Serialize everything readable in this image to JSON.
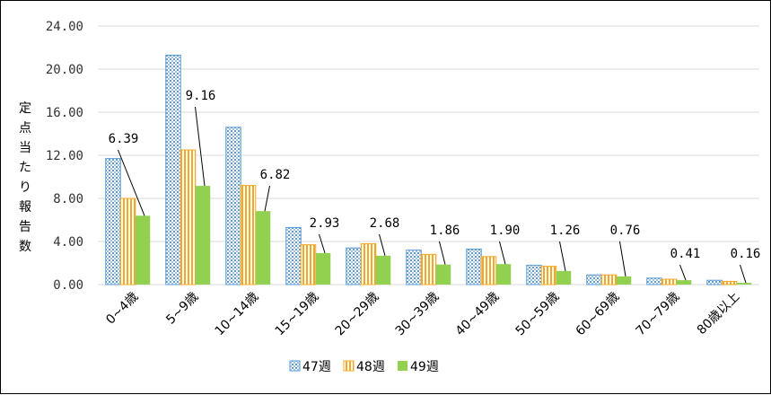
{
  "chart_data": {
    "type": "bar",
    "title": "",
    "xlabel": "",
    "ylabel": "定点当たり報告数",
    "ylim": [
      0,
      24
    ],
    "yticks": [
      "0.00",
      "4.00",
      "8.00",
      "12.00",
      "16.00",
      "20.00",
      "24.00"
    ],
    "categories": [
      "0~4歳",
      "5~9歳",
      "10~14歳",
      "15~19歳",
      "20~29歳",
      "30~39歳",
      "40~49歳",
      "50~59歳",
      "60~69歳",
      "70~79歳",
      "80歳以上"
    ],
    "series": [
      {
        "name": "47週",
        "color": "#5b9bd5",
        "pattern": "dots",
        "values": [
          11.7,
          21.3,
          14.6,
          5.3,
          3.4,
          3.2,
          3.3,
          1.8,
          0.9,
          0.6,
          0.4
        ]
      },
      {
        "name": "48週",
        "color": "#f5a623",
        "pattern": "vertical-stripes",
        "values": [
          8.0,
          12.5,
          9.2,
          3.7,
          3.8,
          2.8,
          2.6,
          1.7,
          0.9,
          0.5,
          0.3
        ]
      },
      {
        "name": "49週",
        "color": "#92d050",
        "pattern": "solid",
        "values": [
          6.39,
          9.16,
          6.82,
          2.93,
          2.68,
          1.86,
          1.9,
          1.26,
          0.76,
          0.41,
          0.16
        ]
      }
    ],
    "data_labels": {
      "series": "49週",
      "texts": [
        "6.39",
        "9.16",
        "6.82",
        "2.93",
        "2.68",
        "1.86",
        "1.90",
        "1.26",
        "0.76",
        "0.41",
        "0.16"
      ]
    },
    "grid": true,
    "legend": "bottom"
  }
}
